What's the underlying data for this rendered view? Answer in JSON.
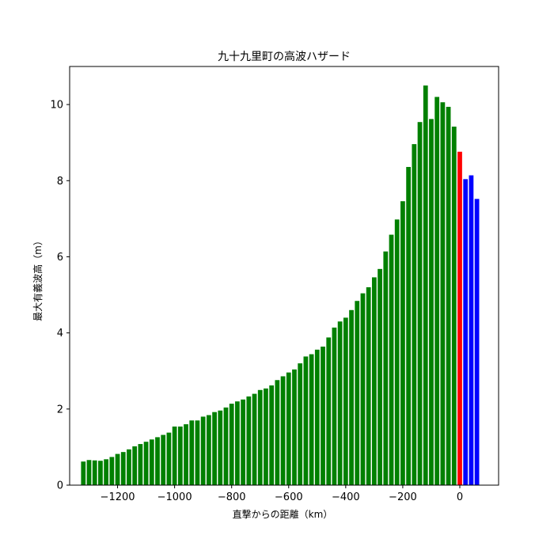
{
  "chart_data": {
    "type": "bar",
    "title": "九十九里町の高波ハザード",
    "xlabel": "直撃からの距離（km）",
    "ylabel": "最大有義波高（m）",
    "xlim": [
      -1368,
      136
    ],
    "ylim": [
      0,
      11
    ],
    "xticks": [
      -1200,
      -1000,
      -800,
      -600,
      -400,
      -200,
      0
    ],
    "yticks": [
      0,
      2,
      4,
      6,
      8,
      10
    ],
    "grid": false,
    "bar_width_km": 16,
    "series": [
      {
        "color": "#008000",
        "x": [
          -1320,
          -1300,
          -1280,
          -1260,
          -1240,
          -1220,
          -1200,
          -1180,
          -1160,
          -1140,
          -1120,
          -1100,
          -1080,
          -1060,
          -1040,
          -1020,
          -1000,
          -980,
          -960,
          -940,
          -920,
          -900,
          -880,
          -860,
          -840,
          -820,
          -800,
          -780,
          -760,
          -740,
          -720,
          -700,
          -680,
          -660,
          -640,
          -620,
          -600,
          -580,
          -560,
          -540,
          -520,
          -500,
          -480,
          -460,
          -440,
          -420,
          -400,
          -380,
          -360,
          -340,
          -320,
          -300,
          -280,
          -260,
          -240,
          -220,
          -200,
          -180,
          -160,
          -140,
          -120,
          -100,
          -80,
          -60,
          -40,
          -20
        ],
        "values": [
          0.62,
          0.66,
          0.65,
          0.64,
          0.68,
          0.74,
          0.82,
          0.87,
          0.94,
          1.02,
          1.08,
          1.14,
          1.2,
          1.26,
          1.32,
          1.38,
          1.54,
          1.54,
          1.6,
          1.7,
          1.7,
          1.8,
          1.84,
          1.92,
          1.96,
          2.04,
          2.14,
          2.2,
          2.25,
          2.33,
          2.4,
          2.5,
          2.54,
          2.62,
          2.76,
          2.86,
          2.96,
          3.04,
          3.2,
          3.38,
          3.44,
          3.56,
          3.64,
          3.88,
          4.14,
          4.3,
          4.4,
          4.6,
          4.84,
          5.04,
          5.2,
          5.46,
          5.68,
          6.14,
          6.58,
          6.98,
          7.46,
          8.36,
          8.96,
          9.54,
          10.5,
          9.62,
          10.2,
          10.06,
          9.94,
          9.42
        ]
      },
      {
        "color": "#ff0000",
        "x": [
          0
        ],
        "values": [
          8.76
        ]
      },
      {
        "color": "#0000ff",
        "x": [
          20,
          40,
          60
        ],
        "values": [
          8.04,
          8.14,
          7.52
        ]
      }
    ]
  }
}
